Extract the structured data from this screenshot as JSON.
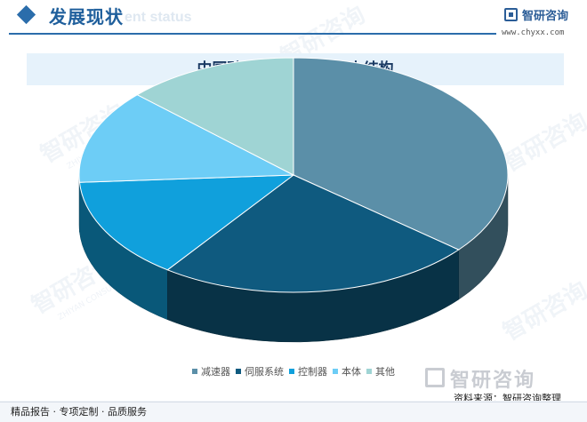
{
  "header": {
    "section_title": "发展现状",
    "section_subtitle_en": "ent status",
    "logo_text": "智研咨询",
    "website": "www.chyxx.com",
    "accent_color": "#2b6dab"
  },
  "chart_data": {
    "type": "pie",
    "title": "中国矿山机器人行业成本结构",
    "categories": [
      "减速器",
      "伺服系统",
      "控制器",
      "本体",
      "其他"
    ],
    "values": [
      36,
      24,
      14,
      13,
      13
    ],
    "unit": "%",
    "colors": [
      "#5b8fa8",
      "#0f5a7f",
      "#10a0dc",
      "#6dcdf6",
      "#9fd4d4"
    ],
    "legend_position": "bottom"
  },
  "watermark": {
    "text": "智研咨询",
    "subtext": "ZHIYAN CONSULTING"
  },
  "footer": {
    "source": "资料来源：智研咨询整理",
    "services": "精品报告 · 专项定制 · 品质服务"
  }
}
